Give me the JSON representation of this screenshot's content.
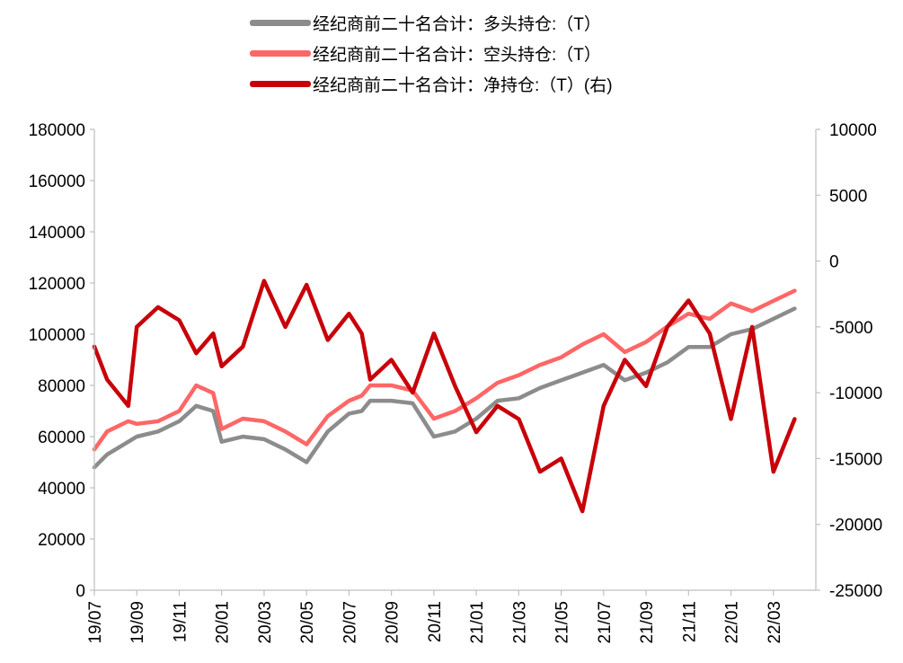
{
  "chart_data": {
    "type": "line",
    "legend": [
      {
        "label": "经纪商前二十名合计：多头持仓:（T）",
        "color": "#8c8c8c"
      },
      {
        "label": "经纪商前二十名合计：空头持仓:（T）",
        "color": "#ff6666"
      },
      {
        "label": "经纪商前二十名合计：净持仓:（T）(右)",
        "color": "#c8000a"
      }
    ],
    "x_tick_labels": [
      "19/07",
      "19/09",
      "19/11",
      "20/01",
      "20/03",
      "20/05",
      "20/07",
      "20/09",
      "20/11",
      "21/01",
      "21/03",
      "21/05",
      "21/07",
      "21/09",
      "21/11",
      "22/01",
      "22/03"
    ],
    "y_left": {
      "min": 0,
      "max": 180000,
      "ticks": [
        "0",
        "20000",
        "40000",
        "60000",
        "80000",
        "100000",
        "120000",
        "140000",
        "160000",
        "180000"
      ]
    },
    "y_right": {
      "min": -25000,
      "max": 10000,
      "ticks": [
        "-25000",
        "-20000",
        "-15000",
        "-10000",
        "-5000",
        "0",
        "5000",
        "10000"
      ]
    },
    "series": [
      {
        "name": "经纪商前二十名合计：多头持仓:（T）",
        "axis": "left",
        "color": "#8c8c8c",
        "x": [
          0,
          0.3,
          0.8,
          1,
          1.5,
          2,
          2.4,
          2.8,
          3,
          3.5,
          4,
          4.5,
          5,
          5.5,
          6,
          6.3,
          6.5,
          7,
          7.5,
          8,
          8.5,
          9,
          9.5,
          10,
          10.5,
          11,
          11.5,
          12,
          12.5,
          13,
          13.5,
          14,
          14.5,
          15,
          15.5,
          16,
          16.5
        ],
        "values": [
          48000,
          53000,
          58000,
          60000,
          62000,
          66000,
          72000,
          70000,
          58000,
          60000,
          59000,
          55000,
          50000,
          62000,
          69000,
          70000,
          74000,
          74000,
          73000,
          60000,
          62000,
          67000,
          74000,
          75000,
          79000,
          82000,
          85000,
          88000,
          82000,
          85000,
          89000,
          95000,
          95000,
          100000,
          102000,
          106000,
          110000
        ]
      },
      {
        "name": "经纪商前二十名合计：空头持仓:（T）",
        "axis": "left",
        "color": "#ff6666",
        "x": [
          0,
          0.3,
          0.8,
          1,
          1.5,
          2,
          2.4,
          2.8,
          3,
          3.5,
          4,
          4.5,
          5,
          5.5,
          6,
          6.3,
          6.5,
          7,
          7.5,
          8,
          8.5,
          9,
          9.5,
          10,
          10.5,
          11,
          11.5,
          12,
          12.5,
          13,
          13.5,
          14,
          14.5,
          15,
          15.5,
          16,
          16.5
        ],
        "values": [
          55000,
          62000,
          66000,
          65000,
          66000,
          70000,
          80000,
          77000,
          63000,
          67000,
          66000,
          62000,
          57000,
          68000,
          74000,
          76000,
          80000,
          80000,
          78000,
          67000,
          70000,
          75000,
          81000,
          84000,
          88000,
          91000,
          96000,
          100000,
          93000,
          97000,
          103000,
          108000,
          106000,
          112000,
          109000,
          113000,
          117000
        ]
      },
      {
        "name": "经纪商前二十名合计：净持仓:（T）(右)",
        "axis": "right",
        "color": "#c8000a",
        "x": [
          0,
          0.3,
          0.8,
          1,
          1.5,
          2,
          2.4,
          2.8,
          3,
          3.5,
          4,
          4.5,
          5,
          5.5,
          6,
          6.3,
          6.5,
          7,
          7.5,
          8,
          8.5,
          9,
          9.5,
          10,
          10.5,
          11,
          11.5,
          12,
          12.5,
          13,
          13.5,
          14,
          14.5,
          15,
          15.5,
          16,
          16.5
        ],
        "values": [
          -6500,
          -9000,
          -11000,
          -5000,
          -3500,
          -4500,
          -7000,
          -5500,
          -8000,
          -6500,
          -1500,
          -5000,
          -1800,
          -6000,
          -4000,
          -5500,
          -9000,
          -7500,
          -10000,
          -5500,
          -9500,
          -13000,
          -11000,
          -12000,
          -16000,
          -15000,
          -19000,
          -11000,
          -7500,
          -9500,
          -5000,
          -3000,
          -5500,
          -12000,
          -5000,
          -16000,
          -12000
        ]
      }
    ]
  }
}
